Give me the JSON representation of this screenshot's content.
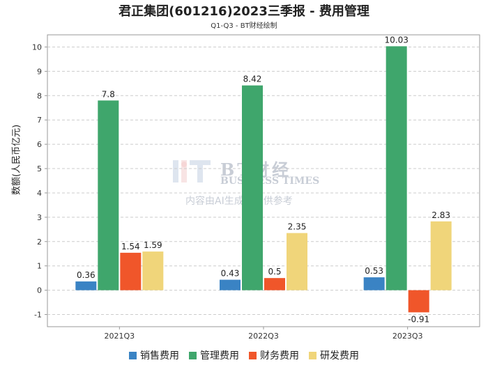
{
  "header": {
    "title": "君正集团(601216)2023三季报 - 费用管理",
    "subtitle": "Q1-Q3 - BT财经绘制"
  },
  "watermark": {
    "brand": "BT财经",
    "sub": "BUSINESS TIMES",
    "note": "内容由AI生成，仅供参考"
  },
  "chart_data": {
    "type": "bar",
    "title": "君正集团(601216)2023三季报 - 费用管理",
    "subtitle": "Q1-Q3 - BT财经绘制",
    "xlabel": "",
    "ylabel": "数额(人民币亿元)",
    "ylim": [
      -1.5,
      10.5
    ],
    "yticks": [
      -1,
      0,
      1,
      2,
      3,
      4,
      5,
      6,
      7,
      8,
      9,
      10
    ],
    "grid": true,
    "legend_position": "bottom",
    "categories": [
      "2021Q3",
      "2022Q3",
      "2023Q3"
    ],
    "series": [
      {
        "name": "销售费用",
        "color": "#3a83c4",
        "values": [
          0.36,
          0.43,
          0.53
        ],
        "labels": [
          "0.36",
          "0.43",
          "0.53"
        ]
      },
      {
        "name": "管理费用",
        "color": "#3fa66c",
        "values": [
          7.8,
          8.42,
          10.03
        ],
        "labels": [
          "7.8",
          "8.42",
          "10.03"
        ]
      },
      {
        "name": "财务费用",
        "color": "#f0562a",
        "values": [
          1.54,
          0.5,
          -0.91
        ],
        "labels": [
          "1.54",
          "0.5",
          "-0.91"
        ]
      },
      {
        "name": "研发费用",
        "color": "#f0d57a",
        "values": [
          1.59,
          2.35,
          2.83
        ],
        "labels": [
          "1.59",
          "2.35",
          "2.83"
        ]
      }
    ]
  }
}
